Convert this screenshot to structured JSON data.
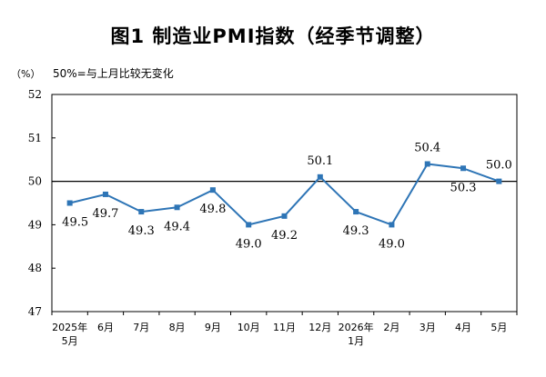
{
  "title": "图1 制造业PMI指数（经季节调整）",
  "unit_label": "（%）",
  "note": "50%=与上月比较无变化",
  "colors": {
    "line": "#2e75b6",
    "axis": "#000000",
    "grid": "#cfcfcf"
  },
  "chart_data": {
    "type": "line",
    "title": "图1 制造业PMI指数（经季节调整）",
    "ylabel": "（%）",
    "xlabel": "",
    "ylim": [
      47,
      52
    ],
    "yticks": [
      47,
      48,
      49,
      50,
      51,
      52
    ],
    "reference_line": 50,
    "grid": false,
    "categories": [
      [
        "2025年",
        "5月"
      ],
      [
        "6月"
      ],
      [
        "7月"
      ],
      [
        "8月"
      ],
      [
        "9月"
      ],
      [
        "10月"
      ],
      [
        "11月"
      ],
      [
        "12月"
      ],
      [
        "2026年",
        "1月"
      ],
      [
        "2月"
      ],
      [
        "3月"
      ],
      [
        "4月"
      ],
      [
        "5月"
      ]
    ],
    "series": [
      {
        "name": "",
        "values": [
          49.5,
          49.7,
          49.3,
          49.4,
          49.8,
          49.0,
          49.2,
          50.1,
          49.3,
          49.0,
          50.4,
          50.3,
          50.0
        ],
        "labels": [
          "49.5",
          "49.7",
          "49.3",
          "49.4",
          "49.8",
          "49.0",
          "49.2",
          "50.1",
          "49.3",
          "49.0",
          "50.4",
          "50.3",
          "50.0"
        ]
      }
    ]
  }
}
